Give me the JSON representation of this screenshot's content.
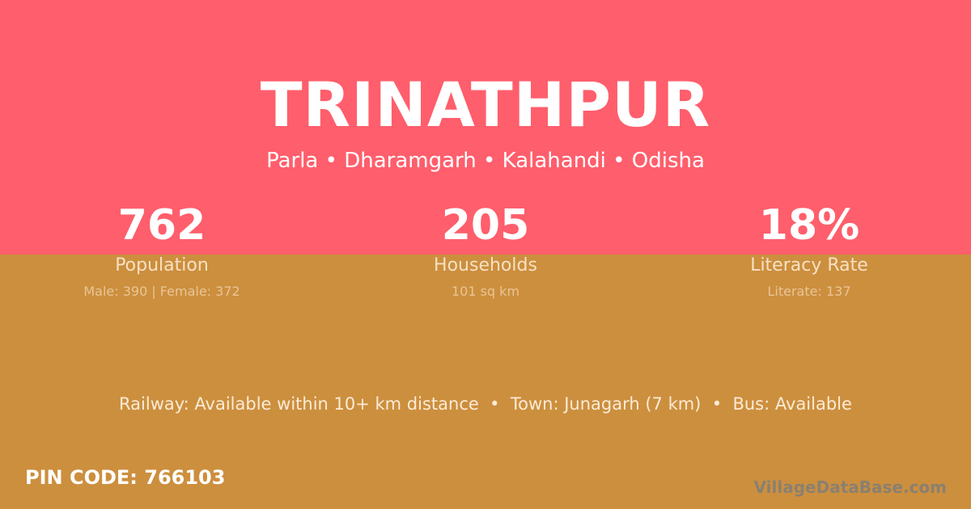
{
  "colors": {
    "top_background": "#FF5E6C",
    "bottom_background": "#CC8F3E"
  },
  "village": {
    "name": "TRINATHPUR",
    "breadcrumb": "Parla • Dharamgarh • Kalahandi • Odisha"
  },
  "stats": [
    {
      "value": "762",
      "label": "Population",
      "detail": "Male: 390 | Female: 372"
    },
    {
      "value": "205",
      "label": "Households",
      "detail": "101 sq km"
    },
    {
      "value": "18%",
      "label": "Literacy Rate",
      "detail": "Literate: 137"
    }
  ],
  "connectivity": "Railway: Available within 10+ km distance  •  Town: Junagarh (7 km)  •  Bus: Available",
  "pin_code": "PIN CODE: 766103",
  "brand": "VillageDataBase.com"
}
